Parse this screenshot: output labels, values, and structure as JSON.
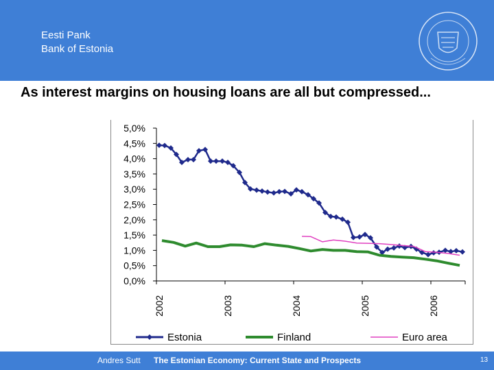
{
  "header": {
    "bank_name_line1": "Eesti Pank",
    "bank_name_line2": "Bank of Estonia",
    "seal_text": "EESTI PANK",
    "background": "#3f7fd6"
  },
  "slide": {
    "title": "As interest margins on housing loans are all but compressed..."
  },
  "footer": {
    "author": "Andres Sutt",
    "title": "The Estonian Economy: Current State and Prospects",
    "page": "13"
  },
  "chart_data": {
    "type": "line",
    "title": "",
    "xlabel": "",
    "ylabel": "",
    "ylim": [
      0,
      5
    ],
    "x_range": [
      2002.0,
      2006.5
    ],
    "y_ticks": [
      "0,0%",
      "0,5%",
      "1,0%",
      "1,5%",
      "2,0%",
      "2,5%",
      "3,0%",
      "3,5%",
      "4,0%",
      "4,5%",
      "5,0%"
    ],
    "x_ticks": [
      "2002",
      "2003",
      "2004",
      "2005",
      "2006"
    ],
    "legend_position": "bottom",
    "series": [
      {
        "name": "Estonia",
        "color": "#1f2a8c",
        "marker": "diamond",
        "x": [
          2002.04,
          2002.12,
          2002.21,
          2002.29,
          2002.37,
          2002.46,
          2002.54,
          2002.62,
          2002.71,
          2002.79,
          2002.87,
          2002.96,
          2003.04,
          2003.12,
          2003.21,
          2003.29,
          2003.37,
          2003.46,
          2003.54,
          2003.62,
          2003.71,
          2003.79,
          2003.87,
          2003.96,
          2004.04,
          2004.12,
          2004.21,
          2004.29,
          2004.37,
          2004.46,
          2004.54,
          2004.62,
          2004.71,
          2004.79,
          2004.87,
          2004.96,
          2005.04,
          2005.12,
          2005.21,
          2005.29,
          2005.37,
          2005.46,
          2005.54,
          2005.62,
          2005.71,
          2005.79,
          2005.87,
          2005.96,
          2006.04,
          2006.12,
          2006.21,
          2006.29,
          2006.37,
          2006.46
        ],
        "values": [
          4.44,
          4.43,
          4.35,
          4.14,
          3.88,
          3.97,
          3.97,
          4.26,
          4.3,
          3.92,
          3.92,
          3.92,
          3.88,
          3.77,
          3.55,
          3.22,
          3.01,
          2.97,
          2.94,
          2.91,
          2.88,
          2.92,
          2.93,
          2.85,
          2.98,
          2.92,
          2.82,
          2.69,
          2.55,
          2.24,
          2.11,
          2.09,
          2.02,
          1.92,
          1.42,
          1.44,
          1.52,
          1.41,
          1.11,
          0.93,
          1.04,
          1.08,
          1.14,
          1.09,
          1.13,
          1.04,
          0.93,
          0.86,
          0.92,
          0.94,
          1.0,
          0.96,
          0.99,
          0.95
        ]
      },
      {
        "name": "Finland",
        "color": "#2e8b2e",
        "marker": "none",
        "x": [
          2002.08,
          2002.25,
          2002.42,
          2002.58,
          2002.75,
          2002.92,
          2003.08,
          2003.25,
          2003.42,
          2003.58,
          2003.75,
          2003.92,
          2004.08,
          2004.25,
          2004.42,
          2004.58,
          2004.75,
          2004.92,
          2005.08,
          2005.25,
          2005.42,
          2005.58,
          2005.75,
          2005.92,
          2006.08,
          2006.25,
          2006.42
        ],
        "values": [
          1.32,
          1.26,
          1.14,
          1.24,
          1.12,
          1.12,
          1.18,
          1.17,
          1.12,
          1.22,
          1.17,
          1.13,
          1.06,
          0.98,
          1.03,
          1.0,
          1.0,
          0.96,
          0.95,
          0.84,
          0.8,
          0.78,
          0.76,
          0.71,
          0.66,
          0.58,
          0.51
        ]
      },
      {
        "name": "Euro area",
        "color": "#e040c0",
        "marker": "none",
        "x": [
          2004.12,
          2004.25,
          2004.42,
          2004.58,
          2004.75,
          2004.92,
          2005.08,
          2005.25,
          2005.42,
          2005.58,
          2005.75,
          2005.92,
          2006.08,
          2006.25,
          2006.42
        ],
        "values": [
          1.46,
          1.45,
          1.28,
          1.34,
          1.3,
          1.24,
          1.23,
          1.22,
          1.19,
          1.16,
          1.13,
          0.96,
          0.94,
          0.9,
          0.84
        ]
      }
    ]
  }
}
